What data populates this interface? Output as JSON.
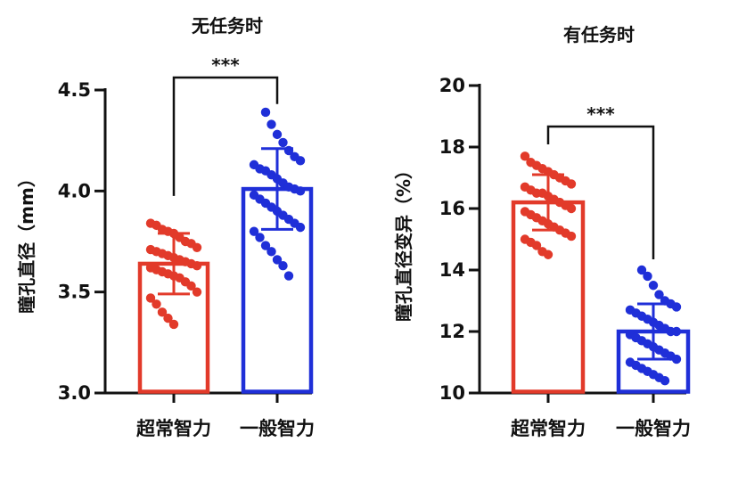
{
  "chart_data": [
    {
      "type": "bar",
      "title": "无任务时",
      "ylabel": "瞳孔直径（mm）",
      "xlabel": "",
      "categories": [
        "超常智力",
        "一般智力"
      ],
      "values": [
        3.64,
        4.01
      ],
      "error": [
        0.15,
        0.2
      ],
      "colors": [
        "#e23a2a",
        "#1f2fd8"
      ],
      "ylim": [
        3.0,
        4.5
      ],
      "yticks": [
        "3.0",
        "3.5",
        "4.0",
        "4.5"
      ],
      "ytick_values": [
        3.0,
        3.5,
        4.0,
        4.5
      ],
      "significance": "***",
      "points": [
        [
          3.84,
          3.83,
          3.81,
          3.8,
          3.79,
          3.77,
          3.75,
          3.74,
          3.72,
          3.71,
          3.7,
          3.69,
          3.68,
          3.67,
          3.66,
          3.65,
          3.64,
          3.63,
          3.62,
          3.61,
          3.6,
          3.59,
          3.58,
          3.57,
          3.55,
          3.53,
          3.5,
          3.47,
          3.44,
          3.4,
          3.37,
          3.34
        ],
        [
          4.39,
          4.33,
          4.28,
          4.24,
          4.2,
          4.17,
          4.15,
          4.13,
          4.11,
          4.1,
          4.08,
          4.06,
          4.04,
          4.02,
          4.01,
          4.0,
          3.98,
          3.96,
          3.94,
          3.92,
          3.9,
          3.88,
          3.86,
          3.84,
          3.82,
          3.8,
          3.77,
          3.73,
          3.7,
          3.66,
          3.63,
          3.58
        ]
      ]
    },
    {
      "type": "bar",
      "title": "有任务时",
      "ylabel": "瞳孔直径变异（%）",
      "xlabel": "",
      "categories": [
        "超常智力",
        "一般智力"
      ],
      "values": [
        16.2,
        12.0
      ],
      "error": [
        0.9,
        0.9
      ],
      "colors": [
        "#e23a2a",
        "#1f2fd8"
      ],
      "ylim": [
        10,
        20
      ],
      "yticks": [
        "10",
        "12",
        "14",
        "16",
        "18",
        "20"
      ],
      "ytick_values": [
        10,
        12,
        14,
        16,
        18,
        20
      ],
      "significance": "***",
      "points": [
        [
          17.7,
          17.5,
          17.4,
          17.3,
          17.2,
          17.1,
          17.0,
          16.9,
          16.8,
          16.7,
          16.6,
          16.5,
          16.5,
          16.4,
          16.3,
          16.2,
          16.1,
          16.0,
          15.9,
          15.8,
          15.7,
          15.6,
          15.5,
          15.4,
          15.3,
          15.2,
          15.1,
          15.0,
          14.9,
          14.8,
          14.6,
          14.5
        ],
        [
          14.0,
          13.8,
          13.5,
          13.2,
          13.0,
          12.9,
          12.8,
          12.7,
          12.6,
          12.5,
          12.4,
          12.3,
          12.2,
          12.1,
          12.0,
          12.0,
          11.9,
          11.8,
          11.7,
          11.6,
          11.5,
          11.4,
          11.3,
          11.2,
          11.1,
          11.0,
          10.9,
          10.8,
          10.7,
          10.6,
          10.5,
          10.4
        ]
      ]
    }
  ]
}
